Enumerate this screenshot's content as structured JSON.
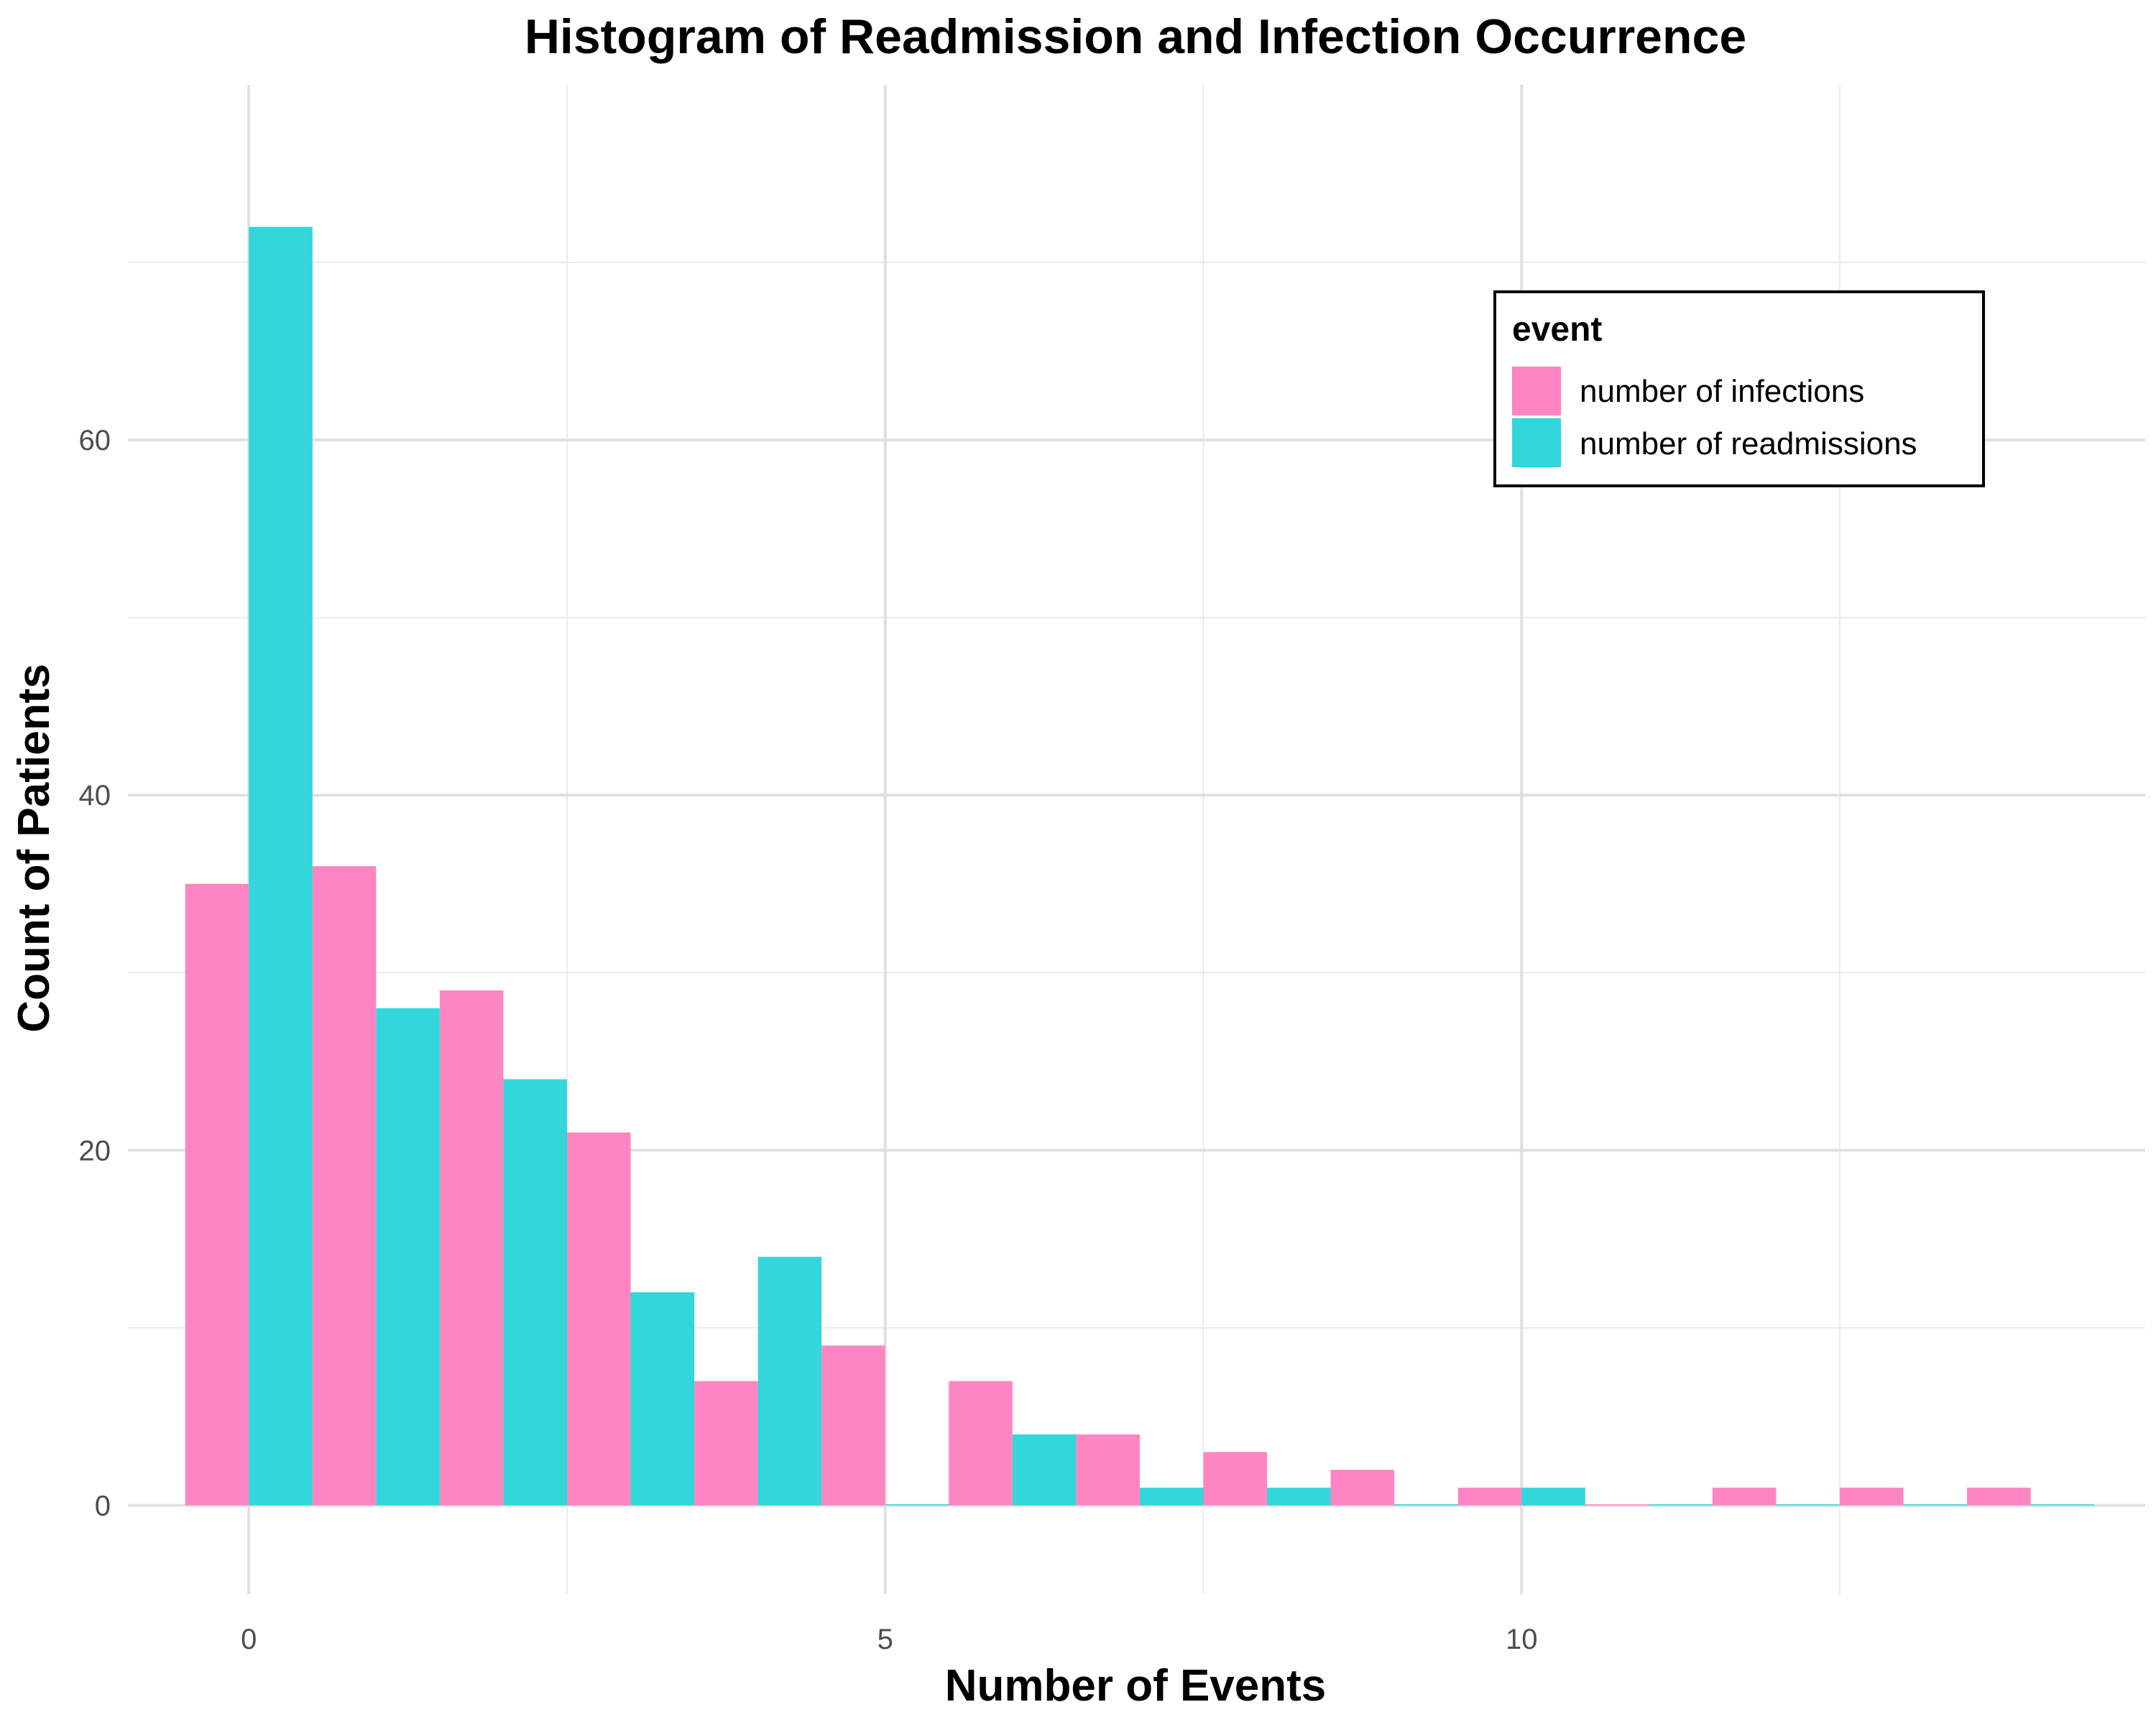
{
  "chart_data": {
    "type": "bar",
    "title": "Histogram of Readmission and Infection Occurrence",
    "xlabel": "Number of Events",
    "ylabel": "Count of Patients",
    "x": [
      0,
      1,
      2,
      3,
      4,
      5,
      6,
      7,
      8,
      9,
      10,
      11,
      12,
      13,
      14
    ],
    "series": [
      {
        "name": "number of infections",
        "color": "#ff85c2",
        "values": [
          35,
          36,
          29,
          21,
          7,
          9,
          7,
          4,
          3,
          2,
          1,
          0,
          1,
          1,
          1
        ]
      },
      {
        "name": "number of readmissions",
        "color": "#33d6da",
        "values": [
          72,
          28,
          24,
          12,
          14,
          0,
          4,
          1,
          1,
          0,
          1,
          0,
          0,
          0,
          0
        ]
      }
    ],
    "xlim": [
      -0.95,
      14.9
    ],
    "ylim": [
      -5,
      80
    ],
    "x_ticks": [
      0,
      5,
      10
    ],
    "x_tick_labels": [
      "0",
      "5",
      "10"
    ],
    "y_ticks": [
      0,
      20,
      40,
      60
    ],
    "y_tick_labels": [
      "0",
      "20",
      "40",
      "60"
    ],
    "grid": true,
    "legend": {
      "title": "event",
      "position": "top-right"
    }
  }
}
